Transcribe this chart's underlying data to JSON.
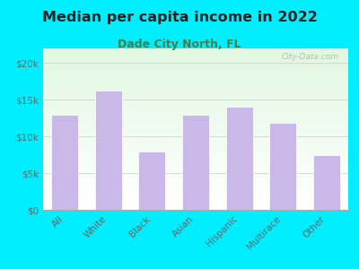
{
  "title": "Median per capita income in 2022",
  "subtitle": "Dade City North, FL",
  "categories": [
    "All",
    "White",
    "Black",
    "Asian",
    "Hispanic",
    "Multirace",
    "Other"
  ],
  "values": [
    13000,
    16200,
    8000,
    13000,
    14000,
    11800,
    7500
  ],
  "bar_color": "#c9b8e8",
  "background_outer": "#00eeff",
  "title_color": "#222222",
  "subtitle_color": "#4a7c4a",
  "tick_color": "#666666",
  "ylim": [
    0,
    22000
  ],
  "yticks": [
    0,
    5000,
    10000,
    15000,
    20000
  ],
  "ytick_labels": [
    "$0",
    "$5k",
    "$10k",
    "$15k",
    "$20k"
  ],
  "watermark": "City-Data.com",
  "title_fontsize": 11.5,
  "subtitle_fontsize": 9,
  "tick_fontsize": 7.5,
  "xlabel_rotation": 45
}
